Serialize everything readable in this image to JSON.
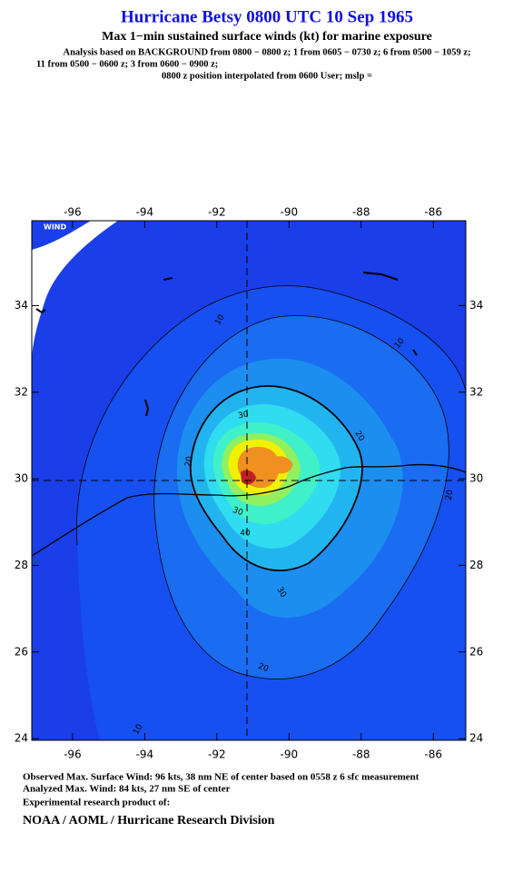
{
  "header": {
    "title": "Hurricane Betsy 0800 UTC 10 Sep 1965",
    "subtitle": "Max 1−min sustained surface winds (kt) for marine exposure",
    "analysis": [
      "Analysis based on  BACKGROUND from 0800 − 0800 z;  1 from 0605 − 0730 z;  6 from 0500 − 1059 z;",
      "11 from 0500 − 0600 z;  3 from 0600 − 0900 z;",
      "0800 z position interpolated from 0600 User; mslp ="
    ]
  },
  "map": {
    "xlim": [
      -97.13,
      -85.1
    ],
    "ylim": [
      23.96,
      35.96
    ],
    "xticks": [
      -96,
      -94,
      -92,
      -90,
      -88,
      -86
    ],
    "yticks": [
      24,
      26,
      28,
      30,
      32,
      34
    ],
    "corner_label": "WIND",
    "contour_labels": [
      "10",
      "10",
      "20",
      "30",
      "20",
      "20",
      "40",
      "30",
      "30",
      "20",
      "10"
    ]
  },
  "footer": {
    "observed": "Observed Max. Surface Wind: 96 kts, 38 nm NE of center based on 0558 z 6 sfc measurement",
    "analyzed": "Analyzed Max. Wind: 84 kts, 27 nm SE of center",
    "experimental": "Experimental research product of:",
    "org": "NOAA / AOML / Hurricane Research Division"
  }
}
